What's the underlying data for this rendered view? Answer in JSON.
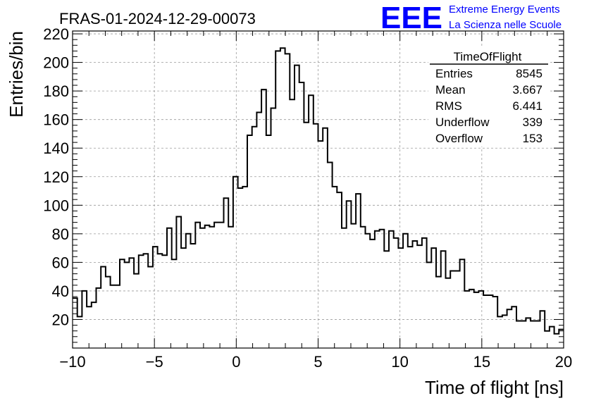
{
  "title": "FRAS-01-2024-12-29-00073",
  "logo": {
    "text": "EEE",
    "line1": "Extreme Energy Events",
    "line2": "La Scienza nelle Scuole",
    "color": "#0000ff"
  },
  "stats": {
    "title": "TimeOfFlight",
    "rows": [
      {
        "label": "Entries",
        "value": "8545"
      },
      {
        "label": "Mean",
        "value": "3.667"
      },
      {
        "label": "RMS",
        "value": "6.441"
      },
      {
        "label": "Underflow",
        "value": "339"
      },
      {
        "label": "Overflow",
        "value": "153"
      }
    ]
  },
  "chart_data": {
    "type": "bar",
    "style": "step-histogram",
    "xlabel": "Time of flight [ns]",
    "ylabel": "Entries/bin",
    "xlim": [
      -10,
      20
    ],
    "ylim": [
      0,
      222
    ],
    "bin_width": 0.333,
    "grid": true,
    "x_ticks": [
      "−10",
      "−5",
      "0",
      "5",
      "10",
      "15",
      "20"
    ],
    "y_ticks": [
      "20",
      "40",
      "60",
      "80",
      "100",
      "120",
      "140",
      "160",
      "180",
      "200",
      "220"
    ],
    "values": [
      35,
      22,
      40,
      29,
      32,
      42,
      57,
      50,
      44,
      44,
      62,
      60,
      63,
      52,
      65,
      66,
      57,
      71,
      66,
      65,
      84,
      62,
      92,
      70,
      80,
      73,
      88,
      84,
      86,
      85,
      88,
      88,
      105,
      85,
      120,
      112,
      113,
      149,
      155,
      165,
      181,
      149,
      168,
      208,
      210,
      206,
      174,
      198,
      186,
      158,
      177,
      157,
      145,
      154,
      130,
      113,
      109,
      84,
      103,
      87,
      108,
      85,
      80,
      76,
      82,
      83,
      68,
      82,
      77,
      70,
      80,
      71,
      75,
      72,
      77,
      60,
      70,
      50,
      68,
      49,
      54,
      54,
      62,
      40,
      41,
      39,
      40,
      37,
      37,
      36,
      22,
      23,
      27,
      29,
      19,
      19,
      21,
      19,
      19,
      26,
      12,
      15,
      10,
      13
    ]
  }
}
